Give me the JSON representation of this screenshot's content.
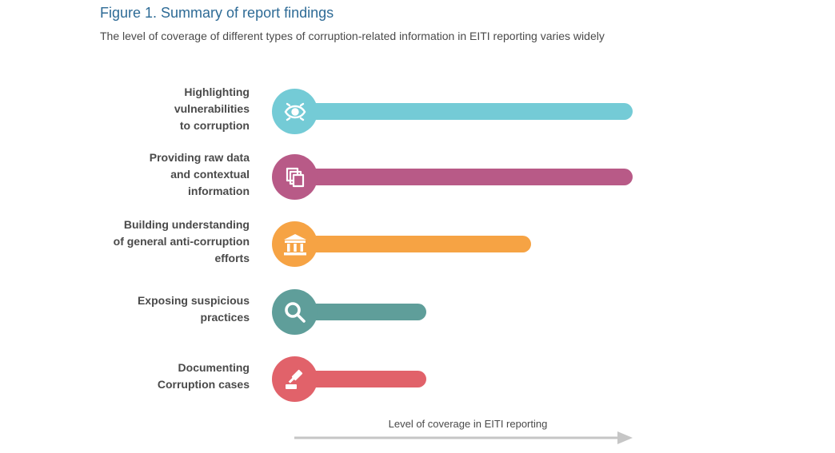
{
  "title": "Figure 1. Summary of report findings",
  "subtitle": "The level of coverage of different types of corruption-related information in EITI reporting varies widely",
  "chart_data": {
    "type": "bar",
    "orientation": "horizontal",
    "categories": [
      "Highlighting vulnerabilities to corruption",
      "Providing raw data and contextual information",
      "Building understanding of general anti-corruption efforts",
      "Exposing suspicious practices",
      "Documenting Corruption cases"
    ],
    "values": [
      1.0,
      1.0,
      0.7,
      0.39,
      0.39
    ],
    "xlabel": "Level of coverage in EITI reporting",
    "ylabel": "",
    "xlim": [
      0,
      1
    ],
    "grid": false,
    "bar_colors": [
      "#74cbd6",
      "#b85a87",
      "#f6a344",
      "#5f9e9a",
      "#e1626a"
    ],
    "axis_color": "#c6c6c6"
  },
  "categories_display": [
    {
      "lines": [
        "Highlighting",
        "vulnerabilities",
        "to corruption"
      ],
      "icon": "eye-icon"
    },
    {
      "lines": [
        "Providing raw data",
        "and contextual",
        "information"
      ],
      "icon": "documents-icon"
    },
    {
      "lines": [
        "Building understanding",
        "of general anti-corruption",
        "efforts"
      ],
      "icon": "institution-icon"
    },
    {
      "lines": [
        "Exposing suspicious",
        "practices"
      ],
      "icon": "magnifier-icon"
    },
    {
      "lines": [
        "Documenting",
        "Corruption cases"
      ],
      "icon": "gavel-icon"
    }
  ]
}
